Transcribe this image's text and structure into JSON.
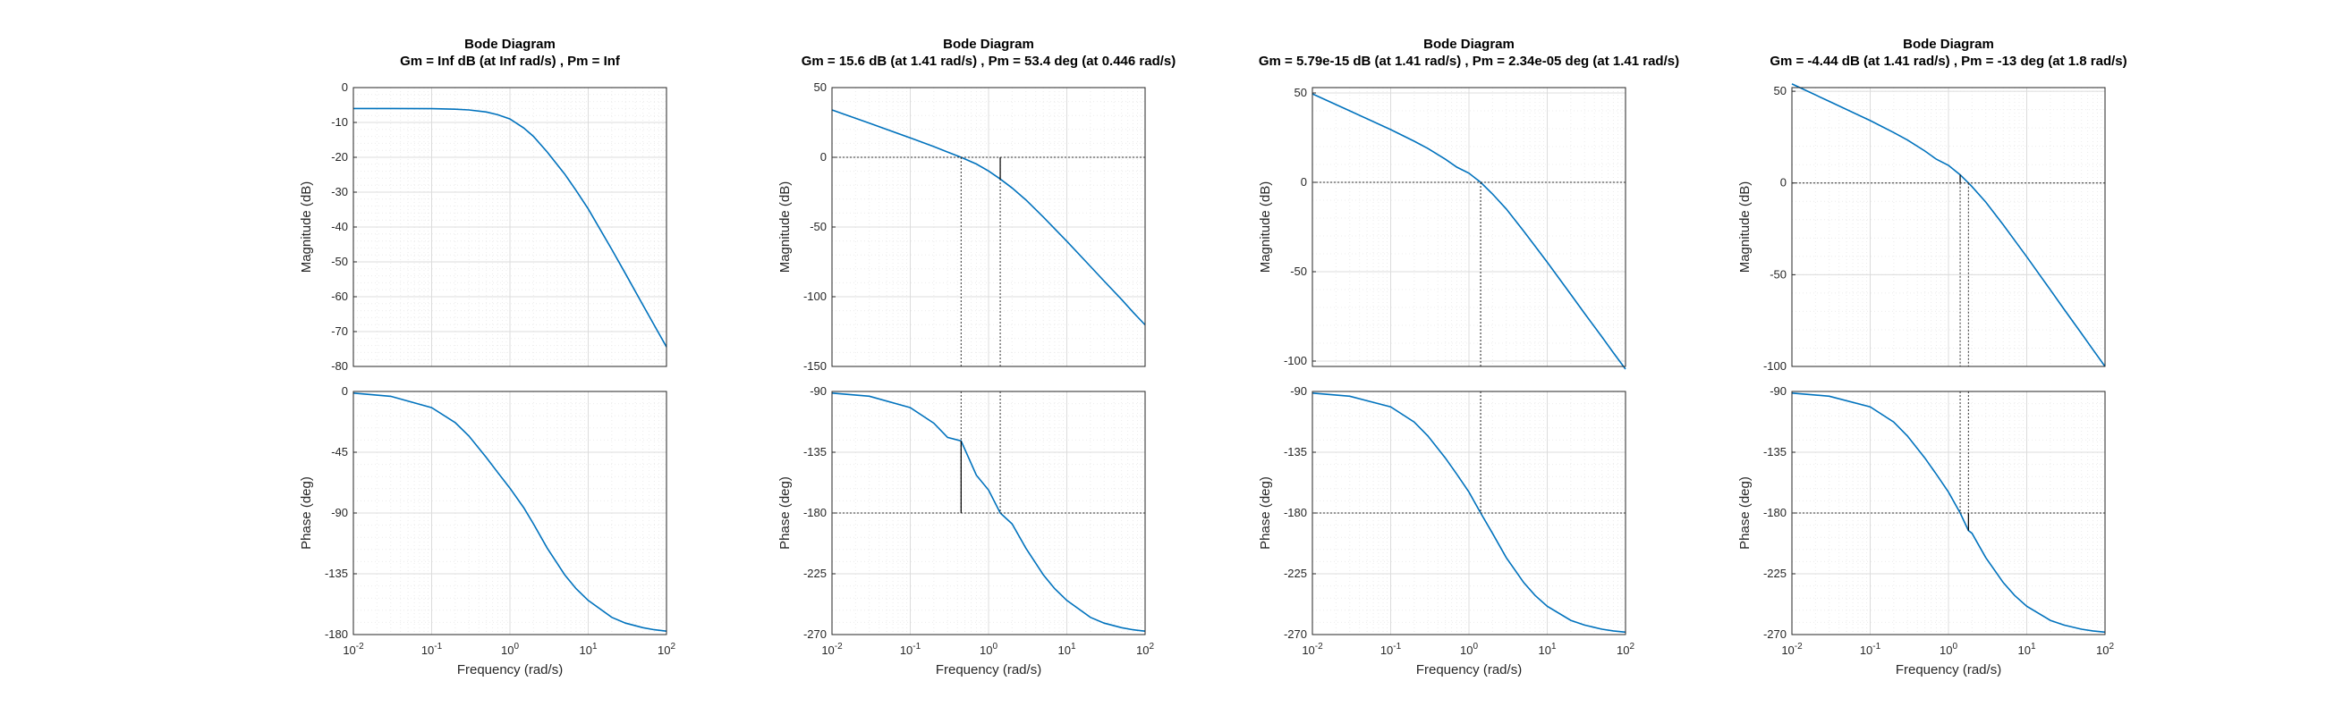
{
  "chart_data": [
    {
      "type": "line",
      "title": "Bode Diagram",
      "subtitle": "Gm = Inf dB (at Inf rad/s) ,  Pm = Inf",
      "xlabel": "Frequency  (rad/s)",
      "xscale": "log",
      "xlim": [
        0.01,
        100
      ],
      "xticks": [
        0.01,
        0.1,
        1,
        10,
        100
      ],
      "magnitude": {
        "ylabel": "Magnitude (dB)",
        "ylim": [
          -80,
          0
        ],
        "yticks": [
          0,
          -10,
          -20,
          -30,
          -40,
          -50,
          -60,
          -70,
          -80
        ],
        "x": [
          0.01,
          0.03,
          0.1,
          0.2,
          0.3,
          0.5,
          0.7,
          1,
          1.5,
          2,
          3,
          5,
          7,
          10,
          20,
          30,
          50,
          70,
          100
        ],
        "y": [
          -6.0,
          -6.0,
          -6.05,
          -6.2,
          -6.4,
          -7.0,
          -7.8,
          -9.0,
          -11.6,
          -14.0,
          -18.5,
          -24.8,
          -29.5,
          -34.8,
          -46.4,
          -53.4,
          -62.4,
          -68.2,
          -74.4
        ]
      },
      "phase": {
        "ylabel": "Phase (deg)",
        "ylim": [
          -180,
          0
        ],
        "yticks": [
          0,
          -45,
          -90,
          -135,
          -180
        ],
        "x": [
          0.01,
          0.03,
          0.1,
          0.2,
          0.3,
          0.5,
          0.7,
          1,
          1.5,
          2,
          3,
          5,
          7,
          10,
          20,
          30,
          50,
          70,
          100
        ],
        "y": [
          -1.2,
          -3.6,
          -12.0,
          -23.0,
          -33.0,
          -49.0,
          -60.0,
          -71.6,
          -86.0,
          -98.0,
          -116.0,
          -135.7,
          -146.0,
          -154.7,
          -167.2,
          -171.5,
          -174.9,
          -176.4,
          -177.5
        ]
      },
      "annotations": {}
    },
    {
      "type": "line",
      "title": "Bode Diagram",
      "subtitle": "Gm = 15.6 dB (at 1.41 rad/s) ,  Pm = 53.4 deg (at 0.446 rad/s)",
      "xlabel": "Frequency  (rad/s)",
      "xscale": "log",
      "xlim": [
        0.01,
        100
      ],
      "xticks": [
        0.01,
        0.1,
        1,
        10,
        100
      ],
      "magnitude": {
        "ylabel": "Magnitude (dB)",
        "ylim": [
          -150,
          50
        ],
        "yticks": [
          50,
          0,
          -50,
          -100,
          -150
        ],
        "x": [
          0.01,
          0.03,
          0.1,
          0.2,
          0.3,
          0.446,
          0.7,
          1,
          1.41,
          2,
          3,
          5,
          7,
          10,
          20,
          30,
          50,
          70,
          100
        ],
        "y": [
          34.0,
          24.5,
          13.9,
          7.7,
          3.8,
          0.0,
          -4.8,
          -9.8,
          -15.6,
          -22.0,
          -30.5,
          -42.8,
          -51.2,
          -60.2,
          -78.2,
          -88.8,
          -102.0,
          -111.0,
          -120.2
        ]
      },
      "phase": {
        "ylabel": "Phase (deg)",
        "ylim": [
          -270,
          -90
        ],
        "yticks": [
          -90,
          -135,
          -180,
          -225,
          -270
        ],
        "x": [
          0.01,
          0.03,
          0.1,
          0.2,
          0.3,
          0.446,
          0.7,
          1,
          1.41,
          2,
          3,
          5,
          7,
          10,
          20,
          30,
          50,
          70,
          100
        ],
        "y": [
          -91.2,
          -93.5,
          -102.0,
          -113.5,
          -124.0,
          -126.6,
          -152.0,
          -163.0,
          -180.0,
          -188.0,
          -206.0,
          -225.7,
          -236.0,
          -244.7,
          -257.2,
          -261.5,
          -264.9,
          -266.4,
          -267.5
        ]
      },
      "annotations": {
        "gm_frequency": 1.41,
        "pm_frequency": 0.446,
        "gm_db": 15.6,
        "pm_deg": 53.4
      }
    },
    {
      "type": "line",
      "title": "Bode Diagram",
      "subtitle": "Gm = 5.79e-15 dB (at 1.41 rad/s) ,  Pm = 2.34e-05 deg (at 1.41 rad/s)",
      "xlabel": "Frequency  (rad/s)",
      "xscale": "log",
      "xlim": [
        0.01,
        100
      ],
      "xticks": [
        0.01,
        0.1,
        1,
        10,
        100
      ],
      "magnitude": {
        "ylabel": "Magnitude (dB)",
        "ylim": [
          -103,
          53
        ],
        "yticks": [
          50,
          0,
          -50,
          -100
        ],
        "x": [
          0.01,
          0.03,
          0.1,
          0.2,
          0.3,
          0.5,
          0.7,
          1,
          1.41,
          2,
          3,
          5,
          7,
          10,
          20,
          30,
          50,
          70,
          100
        ],
        "y": [
          49.5,
          40.0,
          29.5,
          23.0,
          18.9,
          12.9,
          8.5,
          5.1,
          0.0,
          -6.5,
          -14.9,
          -27.3,
          -35.7,
          -44.7,
          -62.7,
          -73.3,
          -86.5,
          -95.3,
          -104.5
        ]
      },
      "phase": {
        "ylabel": "Phase (deg)",
        "ylim": [
          -270,
          -90
        ],
        "yticks": [
          -90,
          -135,
          -180,
          -225,
          -270
        ],
        "x": [
          0.01,
          0.03,
          0.1,
          0.2,
          0.3,
          0.5,
          0.7,
          1,
          1.41,
          2,
          3,
          5,
          7,
          10,
          20,
          30,
          50,
          70,
          100
        ],
        "y": [
          -91.2,
          -93.5,
          -101.4,
          -112.6,
          -123.0,
          -139.4,
          -151.3,
          -164.5,
          -180.0,
          -195.0,
          -213.0,
          -231.5,
          -241.0,
          -249.0,
          -259.5,
          -263.0,
          -266.0,
          -267.3,
          -268.2
        ]
      },
      "annotations": {
        "gm_frequency": 1.41,
        "pm_frequency": 1.41
      }
    },
    {
      "type": "line",
      "title": "Bode Diagram",
      "subtitle": "Gm = -4.44 dB (at 1.41 rad/s) ,  Pm = -13 deg (at 1.8 rad/s)",
      "xlabel": "Frequency  (rad/s)",
      "xscale": "log",
      "xlim": [
        0.01,
        100
      ],
      "xticks": [
        0.01,
        0.1,
        1,
        10,
        100
      ],
      "magnitude": {
        "ylabel": "Magnitude (dB)",
        "ylim": [
          -100,
          52
        ],
        "yticks": [
          50,
          0,
          -50,
          -100
        ],
        "x": [
          0.01,
          0.03,
          0.1,
          0.2,
          0.3,
          0.5,
          0.7,
          1,
          1.41,
          1.8,
          2,
          3,
          5,
          7,
          10,
          20,
          30,
          50,
          70,
          100
        ],
        "y": [
          54.0,
          44.5,
          34.0,
          27.5,
          23.4,
          17.4,
          13.0,
          9.6,
          4.44,
          0.0,
          -2.0,
          -10.4,
          -22.8,
          -31.2,
          -40.2,
          -58.2,
          -68.8,
          -82.0,
          -90.8,
          -100.0
        ]
      },
      "phase": {
        "ylabel": "Phase (deg)",
        "ylim": [
          -270,
          -90
        ],
        "yticks": [
          -90,
          -135,
          -180,
          -225,
          -270
        ],
        "x": [
          0.01,
          0.03,
          0.1,
          0.2,
          0.3,
          0.5,
          0.7,
          1,
          1.41,
          1.8,
          2,
          3,
          5,
          7,
          10,
          20,
          30,
          50,
          70,
          100
        ],
        "y": [
          -91.2,
          -93.5,
          -101.4,
          -112.6,
          -123.0,
          -139.4,
          -151.3,
          -164.5,
          -180.0,
          -193.0,
          -195.0,
          -213.0,
          -231.5,
          -241.0,
          -249.0,
          -259.5,
          -263.0,
          -266.0,
          -267.3,
          -268.2
        ]
      },
      "annotations": {
        "gm_frequency": 1.41,
        "pm_frequency": 1.8,
        "gm_db": -4.44,
        "pm_deg": -13
      }
    }
  ]
}
